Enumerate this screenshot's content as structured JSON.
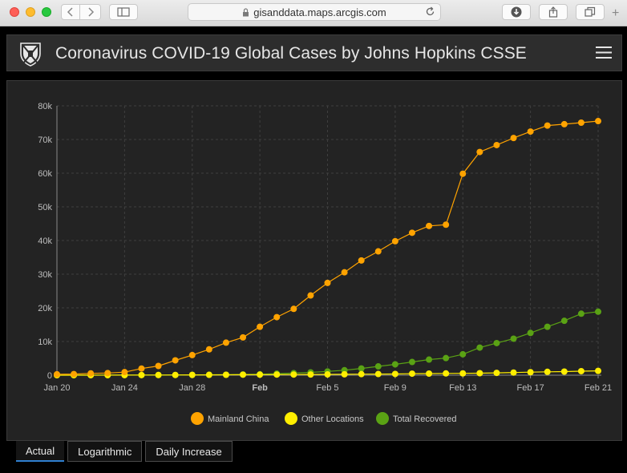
{
  "browser": {
    "url": "gisanddata.maps.arcgis.com"
  },
  "header": {
    "title": "Coronavirus COVID-19 Global Cases by Johns Hopkins CSSE"
  },
  "tabs": [
    {
      "label": "Actual",
      "active": true
    },
    {
      "label": "Logarithmic",
      "active": false
    },
    {
      "label": "Daily Increase",
      "active": false
    }
  ],
  "colors": {
    "mainland_china": "#ffa300",
    "other_locations": "#ffee00",
    "total_recovered": "#5aa214",
    "active_tab": "#2f7fd0"
  },
  "chart_data": {
    "type": "line",
    "title": "",
    "xlabel": "",
    "ylabel": "",
    "x": [
      "Jan 20",
      "Jan 21",
      "Jan 22",
      "Jan 23",
      "Jan 24",
      "Jan 25",
      "Jan 26",
      "Jan 27",
      "Jan 28",
      "Jan 29",
      "Jan 30",
      "Jan 31",
      "Feb 1",
      "Feb 2",
      "Feb 3",
      "Feb 4",
      "Feb 5",
      "Feb 6",
      "Feb 7",
      "Feb 8",
      "Feb 9",
      "Feb 10",
      "Feb 11",
      "Feb 12",
      "Feb 13",
      "Feb 14",
      "Feb 15",
      "Feb 16",
      "Feb 17",
      "Feb 18",
      "Feb 19",
      "Feb 20",
      "Feb 21"
    ],
    "x_tick_labels": [
      {
        "index": 0,
        "label": "Jan 20",
        "bold": false
      },
      {
        "index": 4,
        "label": "Jan 24",
        "bold": false
      },
      {
        "index": 8,
        "label": "Jan 28",
        "bold": false
      },
      {
        "index": 12,
        "label": "Feb",
        "bold": true
      },
      {
        "index": 16,
        "label": "Feb 5",
        "bold": false
      },
      {
        "index": 20,
        "label": "Feb 9",
        "bold": false
      },
      {
        "index": 24,
        "label": "Feb 13",
        "bold": false
      },
      {
        "index": 28,
        "label": "Feb 17",
        "bold": false
      },
      {
        "index": 32,
        "label": "Feb 21",
        "bold": false
      }
    ],
    "y_ticks": [
      0,
      10000,
      20000,
      30000,
      40000,
      50000,
      60000,
      70000,
      80000
    ],
    "y_tick_labels": [
      "0",
      "10k",
      "20k",
      "30k",
      "40k",
      "50k",
      "60k",
      "70k",
      "80k"
    ],
    "ylim": [
      0,
      80000
    ],
    "grid": true,
    "legend_position": "bottom-center",
    "series": [
      {
        "name": "Mainland China",
        "color": "#ffa300",
        "values": [
          278,
          326,
          547,
          639,
          916,
          1979,
          2737,
          4409,
          5970,
          7678,
          9658,
          11221,
          14375,
          17238,
          19693,
          23680,
          27409,
          30553,
          34075,
          36778,
          39790,
          42306,
          44327,
          44699,
          59832,
          66292,
          68347,
          70446,
          72364,
          74139,
          74546,
          74999,
          75472
        ]
      },
      {
        "name": "Other Locations",
        "color": "#ffee00",
        "values": [
          4,
          6,
          8,
          14,
          25,
          40,
          57,
          64,
          87,
          105,
          118,
          153,
          173,
          183,
          188,
          212,
          227,
          265,
          317,
          343,
          361,
          457,
          476,
          523,
          538,
          595,
          685,
          780,
          896,
          999,
          1075,
          1198,
          1280
        ]
      },
      {
        "name": "Total Recovered",
        "color": "#5aa214",
        "values": [
          0,
          0,
          28,
          30,
          36,
          39,
          49,
          58,
          101,
          120,
          135,
          214,
          275,
          463,
          614,
          843,
          1115,
          1476,
          1995,
          2608,
          3219,
          3918,
          4636,
          5082,
          6213,
          8196,
          9538,
          10844,
          12552,
          14376,
          16155,
          18264,
          18862
        ]
      }
    ]
  }
}
